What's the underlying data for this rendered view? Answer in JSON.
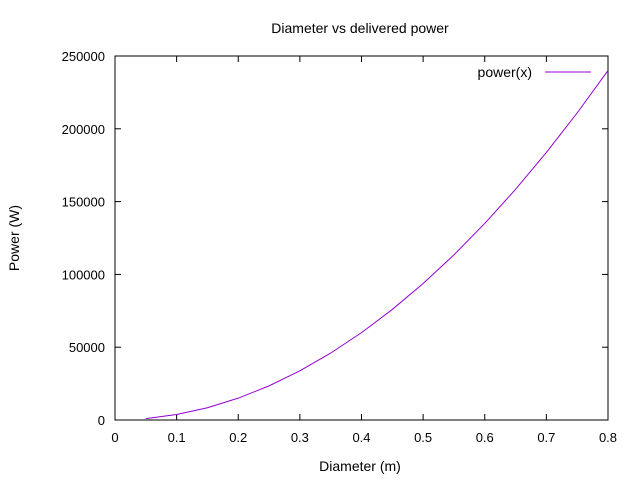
{
  "chart_data": {
    "type": "line",
    "title": "Diameter vs delivered power",
    "xlabel": "Diameter (m)",
    "ylabel": "Power (W)",
    "xlim": [
      0,
      0.8
    ],
    "ylim": [
      0,
      250000
    ],
    "x_ticks": [
      0,
      0.1,
      0.2,
      0.3,
      0.4,
      0.5,
      0.6,
      0.7,
      0.8
    ],
    "x_tick_labels": [
      "0",
      "0.1",
      "0.2",
      "0.3",
      "0.4",
      "0.5",
      "0.6",
      "0.7",
      "0.8"
    ],
    "y_ticks": [
      0,
      50000,
      100000,
      150000,
      200000,
      250000
    ],
    "y_tick_labels": [
      "0",
      "50000",
      "100000",
      "150000",
      "200000",
      "250000"
    ],
    "grid": false,
    "legend_position": "top-right",
    "series": [
      {
        "name": "power(x)",
        "color": "#9400d3",
        "x": [
          0.05,
          0.1,
          0.15,
          0.2,
          0.25,
          0.3,
          0.35,
          0.4,
          0.45,
          0.5,
          0.55,
          0.6,
          0.65,
          0.7,
          0.75,
          0.8
        ],
        "y": [
          938,
          3750,
          8438,
          15000,
          23438,
          33750,
          45938,
          60000,
          75938,
          93750,
          113438,
          135000,
          158438,
          183750,
          210938,
          240000
        ]
      }
    ]
  }
}
